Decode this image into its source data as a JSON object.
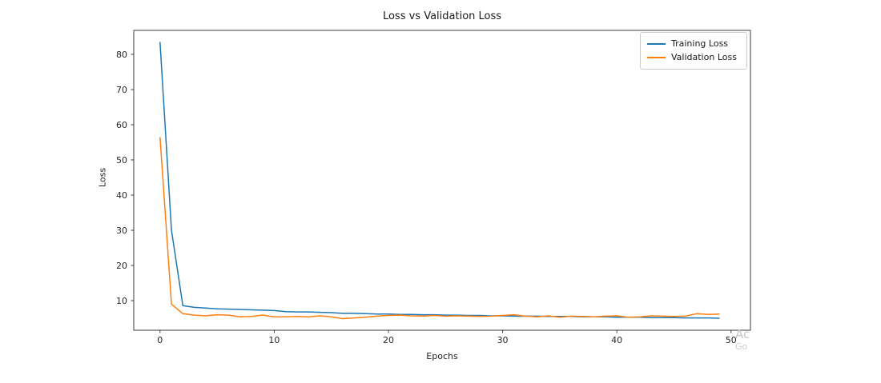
{
  "figure": {
    "title": "Loss vs Validation Loss",
    "xlabel": "Epochs",
    "ylabel": "Loss"
  },
  "legend": {
    "items": [
      {
        "label": "Training Loss",
        "color": "#1f77b4"
      },
      {
        "label": "Validation Loss",
        "color": "#ff7f0e"
      }
    ]
  },
  "watermark": {
    "line1": "Ac",
    "line2": "Go"
  },
  "colors": {
    "spine": "#3c3c3c",
    "tick_label": "#262626",
    "background": "#ffffff"
  },
  "chart_data": {
    "type": "line",
    "title": "Loss vs Validation Loss",
    "xlabel": "Epochs",
    "ylabel": "Loss",
    "legend_position": "upper right",
    "grid": false,
    "xlim": [
      -2.3,
      51.7
    ],
    "ylim": [
      1.6,
      86.8
    ],
    "xticks": [
      0,
      10,
      20,
      30,
      40,
      50
    ],
    "yticks": [
      10,
      20,
      30,
      40,
      50,
      60,
      70,
      80
    ],
    "x": [
      0,
      1,
      2,
      3,
      4,
      5,
      6,
      7,
      8,
      9,
      10,
      11,
      12,
      13,
      14,
      15,
      16,
      17,
      18,
      19,
      20,
      21,
      22,
      23,
      24,
      25,
      26,
      27,
      28,
      29,
      30,
      31,
      32,
      33,
      34,
      35,
      36,
      37,
      38,
      39,
      40,
      41,
      42,
      43,
      44,
      45,
      46,
      47,
      48,
      49
    ],
    "series": [
      {
        "name": "Training Loss",
        "color": "#1f77b4",
        "values": [
          83.5,
          30.0,
          8.6,
          8.1,
          7.9,
          7.7,
          7.6,
          7.5,
          7.4,
          7.3,
          7.2,
          6.9,
          6.8,
          6.8,
          6.7,
          6.6,
          6.4,
          6.4,
          6.3,
          6.2,
          6.2,
          6.1,
          6.1,
          6.0,
          6.0,
          5.9,
          5.9,
          5.8,
          5.8,
          5.7,
          5.7,
          5.6,
          5.6,
          5.6,
          5.5,
          5.5,
          5.5,
          5.4,
          5.4,
          5.4,
          5.3,
          5.3,
          5.3,
          5.2,
          5.2,
          5.2,
          5.1,
          5.1,
          5.1,
          5.0
        ]
      },
      {
        "name": "Validation Loss",
        "color": "#ff7f0e",
        "values": [
          56.5,
          9.0,
          6.3,
          5.9,
          5.7,
          6.0,
          5.9,
          5.4,
          5.5,
          5.9,
          5.4,
          5.4,
          5.5,
          5.4,
          5.7,
          5.4,
          4.9,
          5.1,
          5.3,
          5.6,
          5.8,
          5.9,
          5.7,
          5.6,
          5.8,
          5.6,
          5.7,
          5.6,
          5.5,
          5.6,
          5.8,
          6.0,
          5.6,
          5.4,
          5.7,
          5.3,
          5.6,
          5.5,
          5.4,
          5.6,
          5.7,
          5.3,
          5.4,
          5.7,
          5.6,
          5.5,
          5.6,
          6.3,
          6.1,
          6.2
        ]
      }
    ]
  }
}
